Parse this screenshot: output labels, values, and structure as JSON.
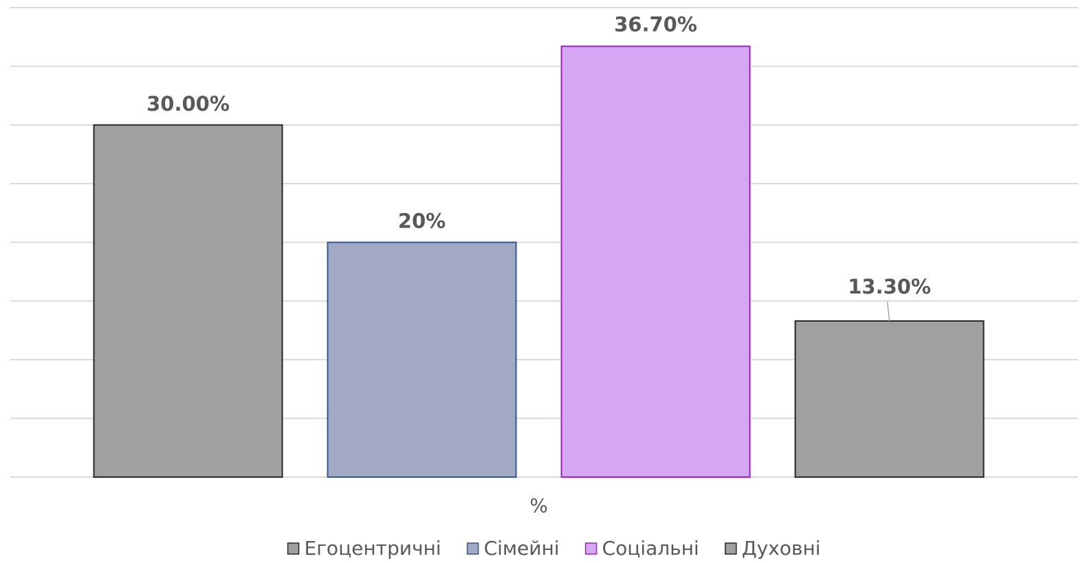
{
  "chart_data": {
    "type": "bar",
    "categories": [
      "%"
    ],
    "series": [
      {
        "name": "Егоцентричні",
        "color": "#a0a0a0",
        "stroke": "#262626",
        "values": [
          30
        ],
        "value_labels": [
          "30.00%"
        ]
      },
      {
        "name": "Сімейні",
        "color": "#a2aac3",
        "stroke": "#2f5597",
        "values": [
          20
        ],
        "value_labels": [
          "20%"
        ]
      },
      {
        "name": "Соціальні",
        "color": "#d5a6f2",
        "stroke": "#a21fc8",
        "values": [
          36.7
        ],
        "value_labels": [
          "36.70%"
        ]
      },
      {
        "name": "Духовні",
        "color": "#a0a0a0",
        "stroke": "#262626",
        "values": [
          13.3
        ],
        "value_labels": [
          "13.30%"
        ]
      }
    ],
    "ylim": [
      0,
      40
    ],
    "yticks": [
      0,
      5,
      10,
      15,
      20,
      25,
      30,
      35,
      40
    ],
    "grid": true,
    "legend": "bottom"
  }
}
